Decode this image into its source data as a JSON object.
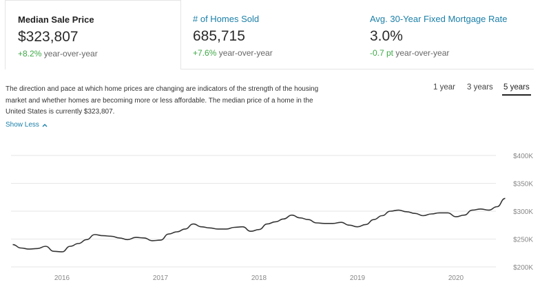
{
  "tabs": [
    {
      "title": "Median Sale Price",
      "value": "$323,807",
      "delta": "+8.2%",
      "suffix": " year-over-year"
    },
    {
      "title": "# of Homes Sold",
      "value": "685,715",
      "delta": "+7.6%",
      "suffix": " year-over-year"
    },
    {
      "title": "Avg. 30-Year Fixed Mortgage Rate",
      "value": "3.0%",
      "delta": "-0.7 pt",
      "suffix": " year-over-year"
    }
  ],
  "description": "The direction and pace at which home prices are changing are indicators of the strength of the housing market and whether homes are becoming more or less affordable. The median price of a home in the United States is currently $323,807.",
  "show_less": "Show Less",
  "icons": {
    "show_less": "chevron-up-icon"
  },
  "colors": {
    "link": "#1a7fa8",
    "positive": "#3da846",
    "line": "#333333",
    "grid": "#e6e6e6"
  },
  "ranges": [
    "1 year",
    "3 years",
    "5 years"
  ],
  "selected_range": "5 years",
  "chart_data": {
    "type": "line",
    "title": "",
    "xlabel": "",
    "ylabel": "",
    "ylim": [
      200000,
      400000
    ],
    "y_ticks": [
      {
        "value": 400000,
        "label": "$400K"
      },
      {
        "value": 350000,
        "label": "$350K"
      },
      {
        "value": 300000,
        "label": "$300K"
      },
      {
        "value": 250000,
        "label": "$250K"
      },
      {
        "value": 200000,
        "label": "$200K"
      }
    ],
    "x_ticks": [
      "2016",
      "2017",
      "2018",
      "2019",
      "2020"
    ],
    "grid": true,
    "series": [
      {
        "x": [
          "2015-07",
          "2015-08",
          "2015-09",
          "2015-10",
          "2015-11",
          "2015-12",
          "2016-01",
          "2016-02",
          "2016-03",
          "2016-04",
          "2016-05",
          "2016-06",
          "2016-07",
          "2016-08",
          "2016-09",
          "2016-10",
          "2016-11",
          "2016-12",
          "2017-01",
          "2017-02",
          "2017-03",
          "2017-04",
          "2017-05",
          "2017-06",
          "2017-07",
          "2017-08",
          "2017-09",
          "2017-10",
          "2017-11",
          "2017-12",
          "2018-01",
          "2018-02",
          "2018-03",
          "2018-04",
          "2018-05",
          "2018-06",
          "2018-07",
          "2018-08",
          "2018-09",
          "2018-10",
          "2018-11",
          "2018-12",
          "2019-01",
          "2019-02",
          "2019-03",
          "2019-04",
          "2019-05",
          "2019-06",
          "2019-07",
          "2019-08",
          "2019-09",
          "2019-10",
          "2019-11",
          "2019-12",
          "2020-01",
          "2020-02",
          "2020-03",
          "2020-04",
          "2020-05",
          "2020-06",
          "2020-07"
        ],
        "values": [
          240000,
          234000,
          232000,
          233000,
          237000,
          228000,
          227000,
          237000,
          242000,
          249000,
          258000,
          256000,
          255000,
          252000,
          249000,
          253000,
          252000,
          247000,
          248000,
          259000,
          263000,
          268000,
          277000,
          272000,
          270000,
          268000,
          268000,
          271000,
          272000,
          264000,
          267000,
          277000,
          281000,
          286000,
          293000,
          288000,
          285000,
          279000,
          278000,
          278000,
          280000,
          275000,
          272000,
          276000,
          285000,
          292000,
          300000,
          302000,
          299000,
          296000,
          292000,
          295000,
          297000,
          297000,
          290000,
          293000,
          302000,
          304000,
          302000,
          308000,
          323000
        ]
      }
    ]
  }
}
